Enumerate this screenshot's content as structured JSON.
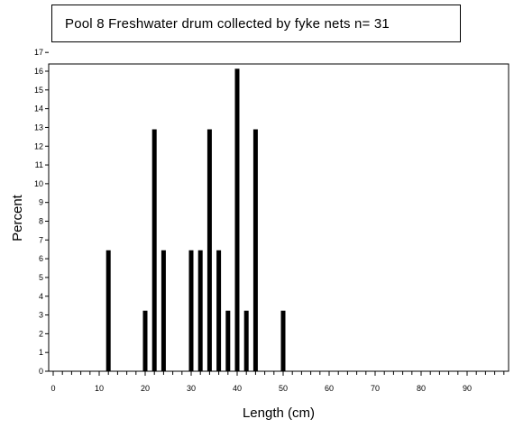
{
  "title": "Pool 8 Freshwater drum collected by fyke nets    n= 31",
  "chart_data": {
    "type": "bar",
    "title": "Pool 8 Freshwater drum collected by fyke nets    n= 31",
    "xlabel": "Length (cm)",
    "ylabel": "Percent",
    "xlim": [
      -1,
      99
    ],
    "ylim": [
      0,
      17
    ],
    "x_ticks": [
      "0",
      "10",
      "20",
      "30",
      "40",
      "50",
      "60",
      "70",
      "80",
      "90"
    ],
    "y_ticks": [
      "0",
      "1",
      "2",
      "3",
      "4",
      "5",
      "6",
      "7",
      "8",
      "9",
      "10",
      "11",
      "12",
      "13",
      "14",
      "15",
      "16",
      "17"
    ],
    "x": [
      12,
      20,
      22,
      24,
      30,
      32,
      34,
      36,
      38,
      40,
      42,
      44,
      50
    ],
    "values": [
      6.45,
      3.23,
      12.9,
      6.45,
      6.45,
      6.45,
      12.9,
      6.45,
      3.23,
      16.13,
      3.23,
      12.9,
      3.23
    ],
    "bar_color": "#000000",
    "grid": false
  }
}
